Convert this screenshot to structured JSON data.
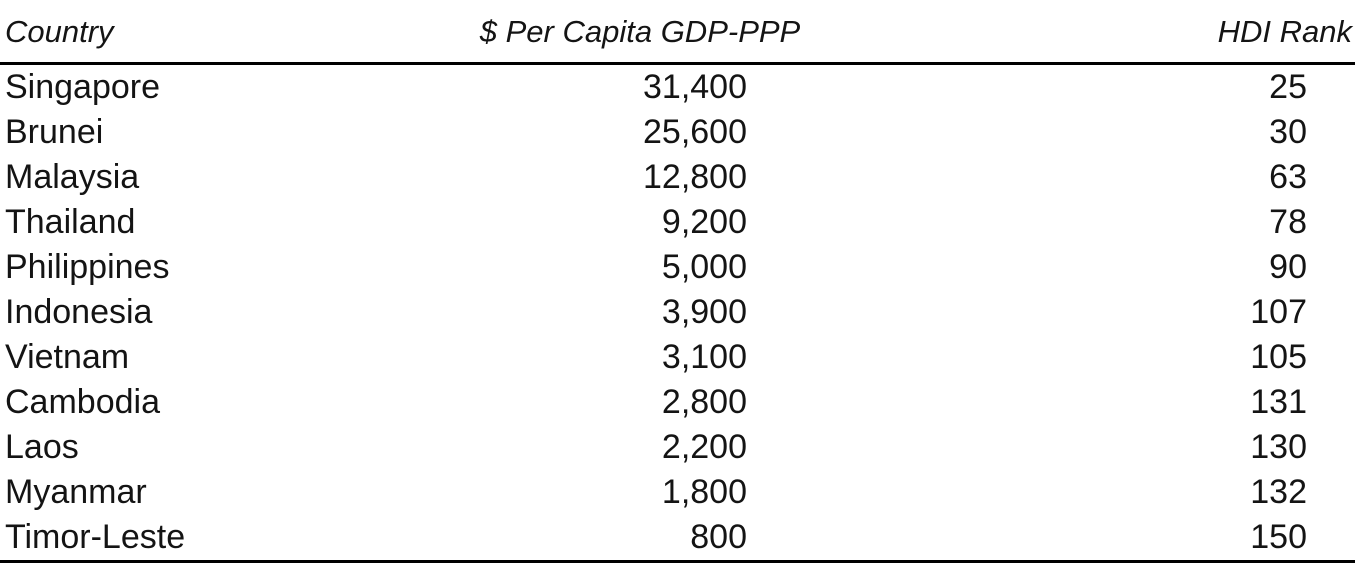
{
  "page": {
    "background": "#ffffff",
    "text_color": "#141414",
    "rule_color": "#000000"
  },
  "table": {
    "headers": {
      "country": "Country",
      "gdp": "$ Per Capita GDP-PPP",
      "hdi": "HDI Rank"
    },
    "rows": [
      {
        "country": "Singapore",
        "gdp": "31,400",
        "hdi": "25"
      },
      {
        "country": "Brunei",
        "gdp": "25,600",
        "hdi": "30"
      },
      {
        "country": "Malaysia",
        "gdp": "12,800",
        "hdi": "63"
      },
      {
        "country": "Thailand",
        "gdp": "9,200",
        "hdi": "78"
      },
      {
        "country": "Philippines",
        "gdp": "5,000",
        "hdi": "90"
      },
      {
        "country": "Indonesia",
        "gdp": "3,900",
        "hdi": "107"
      },
      {
        "country": "Vietnam",
        "gdp": "3,100",
        "hdi": "105"
      },
      {
        "country": "Cambodia",
        "gdp": "2,800",
        "hdi": "131"
      },
      {
        "country": "Laos",
        "gdp": "2,200",
        "hdi": "130"
      },
      {
        "country": "Myanmar",
        "gdp": "1,800",
        "hdi": "132"
      },
      {
        "country": "Timor-Leste",
        "gdp": "800",
        "hdi": "150"
      }
    ]
  },
  "chart_data": {
    "type": "table",
    "columns": [
      "Country",
      "$ Per Capita GDP-PPP",
      "HDI Rank"
    ],
    "rows": [
      [
        "Singapore",
        31400,
        25
      ],
      [
        "Brunei",
        25600,
        30
      ],
      [
        "Malaysia",
        12800,
        63
      ],
      [
        "Thailand",
        9200,
        78
      ],
      [
        "Philippines",
        5000,
        90
      ],
      [
        "Indonesia",
        3900,
        107
      ],
      [
        "Vietnam",
        3100,
        105
      ],
      [
        "Cambodia",
        2800,
        131
      ],
      [
        "Laos",
        2200,
        130
      ],
      [
        "Myanmar",
        1800,
        132
      ],
      [
        "Timor-Leste",
        800,
        150
      ]
    ]
  }
}
